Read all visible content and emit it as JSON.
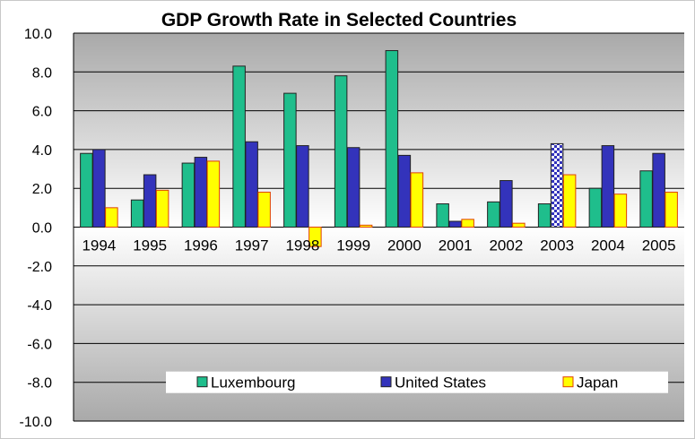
{
  "chart_data": {
    "type": "bar",
    "title": "GDP Growth Rate in Selected Countries",
    "xlabel": "",
    "ylabel": "",
    "ylim": [
      -10,
      10
    ],
    "yticks": [
      "10.0",
      "8.0",
      "6.0",
      "4.0",
      "2.0",
      "0.0",
      "-2.0",
      "-4.0",
      "-6.0",
      "-8.0",
      "-10.0"
    ],
    "categories": [
      "1994",
      "1995",
      "1996",
      "1997",
      "1998",
      "1999",
      "2000",
      "2001",
      "2002",
      "2003",
      "2004",
      "2005"
    ],
    "grid": true,
    "legend_position": "bottom",
    "series": [
      {
        "name": "Luxembourg",
        "color": "#1fbe8c",
        "values": [
          3.8,
          1.4,
          3.3,
          8.3,
          6.9,
          7.8,
          9.1,
          1.2,
          1.3,
          1.2,
          2.0,
          2.9
        ]
      },
      {
        "name": "United States",
        "color": "#3333bb",
        "values": [
          4.0,
          2.7,
          3.6,
          4.4,
          4.2,
          4.1,
          3.7,
          0.3,
          2.4,
          4.3,
          4.2,
          3.8
        ]
      },
      {
        "name": "Japan",
        "color": "#ffff00",
        "values": [
          1.0,
          1.9,
          3.4,
          1.8,
          -1.0,
          0.1,
          2.8,
          0.4,
          0.2,
          2.7,
          1.7,
          1.8
        ]
      }
    ],
    "highlight": {
      "series": "United States",
      "category": "2003",
      "pattern": "checkered"
    }
  }
}
